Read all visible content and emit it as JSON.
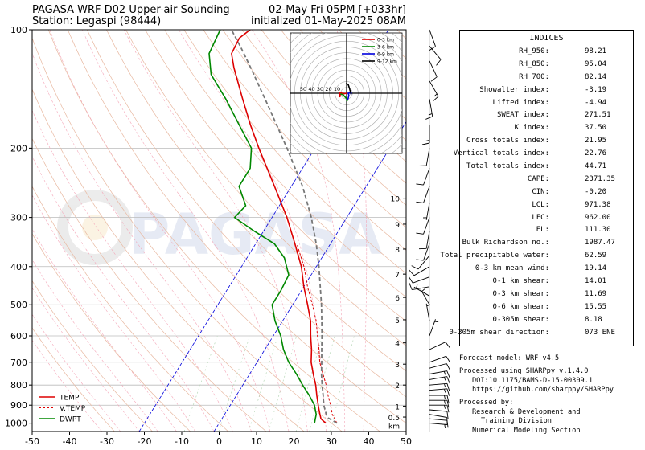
{
  "header": {
    "title_line1": "PAGASA WRF D02 Upper-air Sounding",
    "title_line2": "Station: Legaspi (98444)",
    "valid_line1": "02-May Fri 05PM [+033hr]",
    "valid_line2": "initialized 01-May-2025 08AM"
  },
  "watermark": "PAGASA",
  "colors": {
    "temp": "#dd0000",
    "vtemp": "#dd0000",
    "dwpt": "#008800",
    "parcel": "#777777",
    "dry_adiabat": "#e8b8a0",
    "moist_adiabat": "#f4a6b8",
    "mixing_ratio": "#b8d8b8",
    "isotherm_zero": "#0000dd",
    "grid": "#bbbbbb"
  },
  "chart_data": [
    {
      "type": "line",
      "subtype": "skew-t log-p",
      "xlim": [
        -50,
        50
      ],
      "ylim": [
        1050,
        100
      ],
      "yscale": "log",
      "x_ticks": [
        -50,
        -40,
        -30,
        -20,
        -10,
        0,
        10,
        20,
        30,
        40,
        50
      ],
      "y_ticks": [
        1000,
        900,
        800,
        700,
        600,
        500,
        400,
        300,
        200,
        100
      ],
      "height_km_ticks": [
        {
          "label": "km",
          "p": 1000
        },
        {
          "label": "0.5",
          "p": 965
        },
        {
          "label": "1",
          "p": 905
        },
        {
          "label": "2",
          "p": 800
        },
        {
          "label": "3",
          "p": 708
        },
        {
          "label": "4",
          "p": 625
        },
        {
          "label": "5",
          "p": 546
        },
        {
          "label": "6",
          "p": 479
        },
        {
          "label": "7",
          "p": 418
        },
        {
          "label": "8",
          "p": 361
        },
        {
          "label": "9",
          "p": 312
        },
        {
          "label": "10",
          "p": 268
        }
      ],
      "legend": {
        "position": "bottom-left",
        "items": [
          "TEMP",
          "V.TEMP",
          "DWPT"
        ]
      },
      "series": [
        {
          "name": "TEMP",
          "style": "solid",
          "points": [
            [
              1000,
              28.5
            ],
            [
              975,
              26.5
            ],
            [
              950,
              25.5
            ],
            [
              925,
              24.5
            ],
            [
              900,
              23.5
            ],
            [
              850,
              21.5
            ],
            [
              800,
              19.5
            ],
            [
              750,
              17.0
            ],
            [
              700,
              14.5
            ],
            [
              650,
              12.5
            ],
            [
              600,
              10.0
            ],
            [
              550,
              7.5
            ],
            [
              500,
              4.0
            ],
            [
              450,
              0.0
            ],
            [
              400,
              -4.0
            ],
            [
              350,
              -9.5
            ],
            [
              300,
              -16.0
            ],
            [
              250,
              -24.5
            ],
            [
              200,
              -35.0
            ],
            [
              175,
              -41.0
            ],
            [
              150,
              -47.5
            ],
            [
              125,
              -55.0
            ],
            [
              115,
              -58.0
            ],
            [
              105,
              -58.5
            ],
            [
              100,
              -57.0
            ]
          ]
        },
        {
          "name": "V.TEMP",
          "style": "dashed",
          "points": [
            [
              1000,
              31.5
            ],
            [
              950,
              28.8
            ],
            [
              900,
              26.8
            ],
            [
              850,
              24.5
            ],
            [
              800,
              22.3
            ],
            [
              750,
              19.6
            ],
            [
              700,
              16.8
            ],
            [
              650,
              14.5
            ],
            [
              600,
              11.8
            ],
            [
              550,
              9.0
            ],
            [
              500,
              5.3
            ],
            [
              450,
              1.0
            ],
            [
              400,
              -3.3
            ],
            [
              350,
              -9.0
            ]
          ]
        },
        {
          "name": "DWPT",
          "style": "solid",
          "points": [
            [
              1000,
              25.5
            ],
            [
              975,
              25.0
            ],
            [
              950,
              24.5
            ],
            [
              900,
              22.5
            ],
            [
              850,
              19.5
            ],
            [
              800,
              16.0
            ],
            [
              750,
              12.5
            ],
            [
              700,
              8.5
            ],
            [
              650,
              5.0
            ],
            [
              600,
              2.0
            ],
            [
              550,
              -2.0
            ],
            [
              500,
              -5.5
            ],
            [
              460,
              -5.5
            ],
            [
              420,
              -6.0
            ],
            [
              380,
              -10.0
            ],
            [
              350,
              -15.0
            ],
            [
              325,
              -22.5
            ],
            [
              300,
              -30.0
            ],
            [
              280,
              -29.0
            ],
            [
              250,
              -34.0
            ],
            [
              225,
              -34.0
            ],
            [
              200,
              -37.0
            ],
            [
              175,
              -44.0
            ],
            [
              150,
              -52.0
            ],
            [
              130,
              -60.0
            ],
            [
              115,
              -64.0
            ],
            [
              100,
              -65.0
            ]
          ]
        },
        {
          "name": "Parcel",
          "style": "dashed",
          "points": [
            [
              1000,
              31.5
            ],
            [
              971,
              28.4
            ],
            [
              950,
              27.2
            ],
            [
              900,
              25.0
            ],
            [
              850,
              23.2
            ],
            [
              800,
              21.2
            ],
            [
              750,
              19.2
            ],
            [
              700,
              17.3
            ],
            [
              650,
              15.2
            ],
            [
              600,
              13.0
            ],
            [
              550,
              10.5
            ],
            [
              500,
              7.7
            ],
            [
              450,
              4.4
            ],
            [
              400,
              0.7
            ],
            [
              350,
              -3.8
            ],
            [
              300,
              -9.5
            ],
            [
              250,
              -17.0
            ],
            [
              200,
              -27.5
            ],
            [
              175,
              -34.0
            ],
            [
              150,
              -41.5
            ],
            [
              125,
              -50.5
            ],
            [
              111,
              -56.5
            ],
            [
              100,
              -62.0
            ]
          ]
        }
      ]
    },
    {
      "type": "line",
      "subtype": "hodograph",
      "rings": [
        10,
        20,
        30,
        40,
        50
      ],
      "legend": {
        "position": "top-right",
        "items": [
          "0-3 km",
          "3-6 km",
          "6-9 km",
          "9-12 km"
        ]
      },
      "series": [
        {
          "name": "0-3 km",
          "color": "#dd0000",
          "points": [
            [
              0,
              0
            ],
            [
              -5,
              -1
            ],
            [
              -12,
              1
            ],
            [
              -13,
              -3
            ],
            [
              -12,
              -7
            ],
            [
              -11,
              -1
            ]
          ]
        },
        {
          "name": "3-6 km",
          "color": "#008800",
          "points": [
            [
              -11,
              -1
            ],
            [
              -6,
              -3
            ],
            [
              1,
              -11
            ],
            [
              0,
              -14
            ],
            [
              2,
              -12
            ]
          ]
        },
        {
          "name": "6-9 km",
          "color": "#0000dd",
          "points": [
            [
              2,
              -12
            ],
            [
              4,
              -4
            ],
            [
              3,
              0
            ],
            [
              8,
              1
            ],
            [
              8,
              -2
            ]
          ]
        },
        {
          "name": "9-12 km",
          "color": "#000000",
          "points": [
            [
              8,
              -2
            ],
            [
              5,
              9
            ],
            [
              3,
              15
            ],
            [
              -1,
              18
            ]
          ]
        }
      ]
    }
  ],
  "indices": {
    "title": "INDICES",
    "rows": [
      {
        "label": "RH_950:",
        "value": "98.21"
      },
      {
        "label": "RH_850:",
        "value": "95.04"
      },
      {
        "label": "RH_700:",
        "value": "82.14"
      },
      {
        "label": "Showalter index:",
        "value": "-3.19"
      },
      {
        "label": "Lifted index:",
        "value": "-4.94"
      },
      {
        "label": "SWEAT index:",
        "value": "271.51"
      },
      {
        "label": "K index:",
        "value": "37.50"
      },
      {
        "label": "Cross totals index:",
        "value": "21.95"
      },
      {
        "label": "Vertical totals index:",
        "value": "22.76"
      },
      {
        "label": "Total totals index:",
        "value": "44.71"
      },
      {
        "label": "CAPE:",
        "value": "2371.35"
      },
      {
        "label": "CIN:",
        "value": "-0.20"
      },
      {
        "label": "LCL:",
        "value": "971.38"
      },
      {
        "label": "LFC:",
        "value": "962.00"
      },
      {
        "label": "EL:",
        "value": "111.30"
      },
      {
        "label": "Bulk Richardson no.:",
        "value": "1987.47"
      },
      {
        "label": "Total precipitable water:",
        "value": "62.59"
      },
      {
        "label": "0-3 km mean wind:",
        "value": "19.14"
      },
      {
        "label": "0-1 km shear:",
        "value": "14.01"
      },
      {
        "label": "0-3 km shear:",
        "value": "11.69"
      },
      {
        "label": "0-6 km shear:",
        "value": "15.55"
      },
      {
        "label": "0-305m shear:",
        "value": "8.18"
      },
      {
        "label": "0-305m shear direction:",
        "value": "073 ENE"
      }
    ]
  },
  "footer": {
    "model": "Forecast model: WRF v4.5",
    "processed_using": "Processed using SHARPpy v.1.4.0",
    "doi": "DOI:10.1175/BAMS-D-15-00309.1",
    "url": "https://github.com/sharppy/SHARPpy",
    "processed_by": "Processed by:",
    "org_line1": "Research & Development and",
    "org_line2": "Training Division",
    "org_line3": "Numerical Modeling Section"
  },
  "winds": [
    {
      "p": 1000,
      "dir": 95,
      "spd": 5
    },
    {
      "p": 975,
      "dir": 95,
      "spd": 10
    },
    {
      "p": 950,
      "dir": 100,
      "spd": 10
    },
    {
      "p": 925,
      "dir": 95,
      "spd": 10
    },
    {
      "p": 900,
      "dir": 90,
      "spd": 15
    },
    {
      "p": 875,
      "dir": 90,
      "spd": 15
    },
    {
      "p": 850,
      "dir": 90,
      "spd": 15
    },
    {
      "p": 825,
      "dir": 85,
      "spd": 15
    },
    {
      "p": 800,
      "dir": 85,
      "spd": 15
    },
    {
      "p": 775,
      "dir": 80,
      "spd": 15
    },
    {
      "p": 750,
      "dir": 80,
      "spd": 15
    },
    {
      "p": 725,
      "dir": 75,
      "spd": 10
    },
    {
      "p": 700,
      "dir": 70,
      "spd": 10
    },
    {
      "p": 650,
      "dir": 65,
      "spd": 10
    },
    {
      "p": 600,
      "dir": 20,
      "spd": 5
    },
    {
      "p": 550,
      "dir": 350,
      "spd": 5
    },
    {
      "p": 500,
      "dir": 330,
      "spd": 5
    },
    {
      "p": 475,
      "dir": 300,
      "spd": 5
    },
    {
      "p": 450,
      "dir": 260,
      "spd": 10
    },
    {
      "p": 425,
      "dir": 250,
      "spd": 10
    },
    {
      "p": 400,
      "dir": 240,
      "spd": 10
    },
    {
      "p": 375,
      "dir": 220,
      "spd": 10
    },
    {
      "p": 350,
      "dir": 200,
      "spd": 10
    },
    {
      "p": 325,
      "dir": 190,
      "spd": 10
    },
    {
      "p": 300,
      "dir": 200,
      "spd": 10
    },
    {
      "p": 275,
      "dir": 190,
      "spd": 5
    },
    {
      "p": 250,
      "dir": 200,
      "spd": 10
    },
    {
      "p": 225,
      "dir": 200,
      "spd": 10
    },
    {
      "p": 200,
      "dir": 190,
      "spd": 10
    },
    {
      "p": 175,
      "dir": 180,
      "spd": 15
    },
    {
      "p": 150,
      "dir": 170,
      "spd": 15
    },
    {
      "p": 135,
      "dir": 150,
      "spd": 15
    },
    {
      "p": 120,
      "dir": 155,
      "spd": 10
    },
    {
      "p": 110,
      "dir": 140,
      "spd": 10
    },
    {
      "p": 100,
      "dir": 160,
      "spd": 10
    }
  ]
}
